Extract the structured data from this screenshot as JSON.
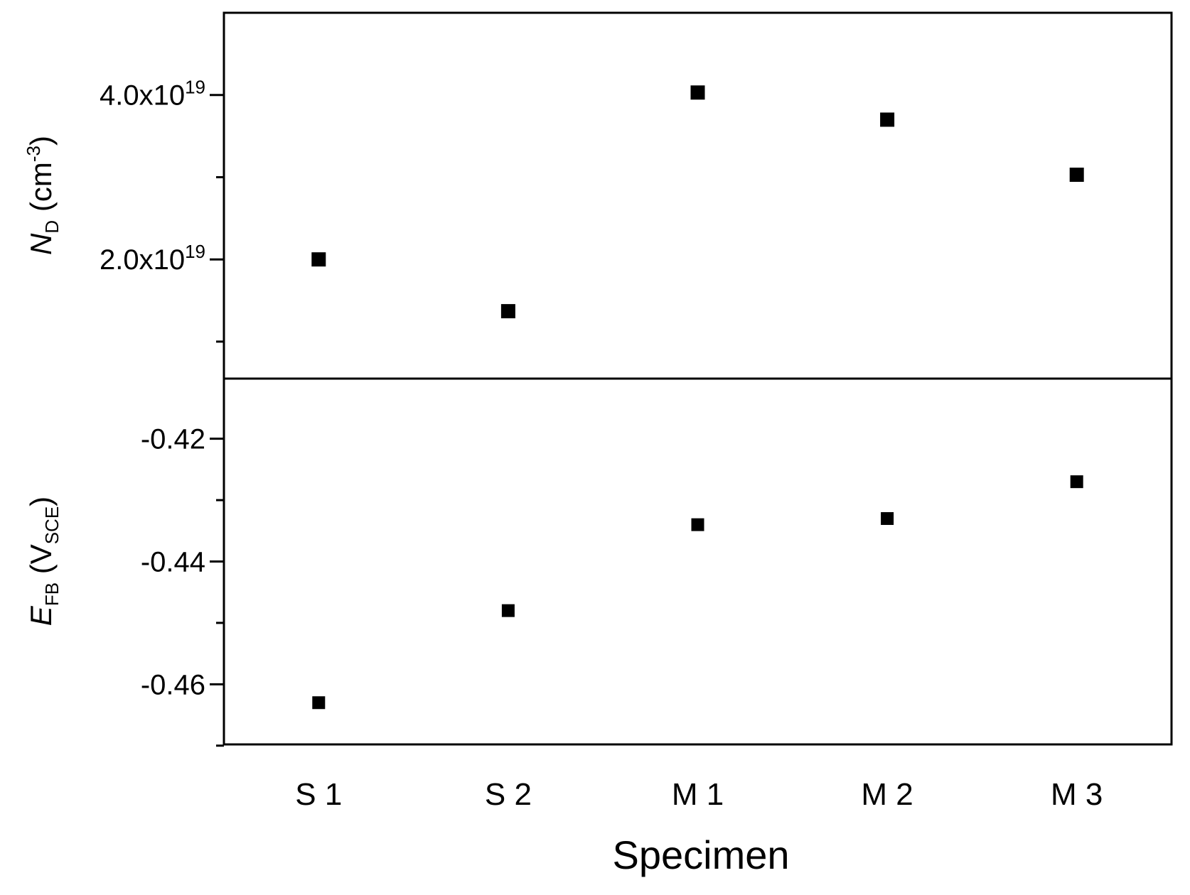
{
  "chart_data": [
    {
      "type": "scatter",
      "panel": "top",
      "categories": [
        "S 1",
        "S 2",
        "M 1",
        "M 2",
        "M 3"
      ],
      "values": [
        2e+19,
        1.37e+19,
        4.03e+19,
        3.7e+19,
        3.03e+19
      ],
      "ylim": [
        5.5e+18,
        5e+19
      ],
      "yticks": [
        2e+19,
        4e+19
      ],
      "yticks_minor": [
        1e+19,
        3e+19
      ],
      "ytick_labels": [
        {
          "mantissa": "2.0x10",
          "exponent": "19"
        },
        {
          "mantissa": "4.0x10",
          "exponent": "19"
        }
      ],
      "ylabel": {
        "symbol": "N",
        "subscript": "D",
        "unit_open": " (cm",
        "unit_power": "-3",
        "unit_close": ")"
      },
      "marker": "filled-square",
      "color": "#000000"
    },
    {
      "type": "scatter",
      "panel": "bottom",
      "categories": [
        "S 1",
        "S 2",
        "M 1",
        "M 2",
        "M 3"
      ],
      "values": [
        -0.463,
        -0.448,
        -0.434,
        -0.433,
        -0.427
      ],
      "ylim": [
        -0.4698,
        -0.4102
      ],
      "yticks": [
        -0.46,
        -0.44,
        -0.42
      ],
      "yticks_minor": [
        -0.47,
        -0.45,
        -0.43
      ],
      "ytick_labels": [
        "-0.46",
        "-0.44",
        "-0.42"
      ],
      "ylabel": {
        "symbol": "E",
        "subscript": "FB",
        "unit_open": " (V",
        "unit_sub": "SCE",
        "unit_close": ")"
      },
      "marker": "filled-square",
      "color": "#000000"
    }
  ],
  "xaxis": {
    "title": "Specimen",
    "tick_labels": [
      "S 1",
      "S 2",
      "M 1",
      "M 2",
      "M 3"
    ]
  }
}
